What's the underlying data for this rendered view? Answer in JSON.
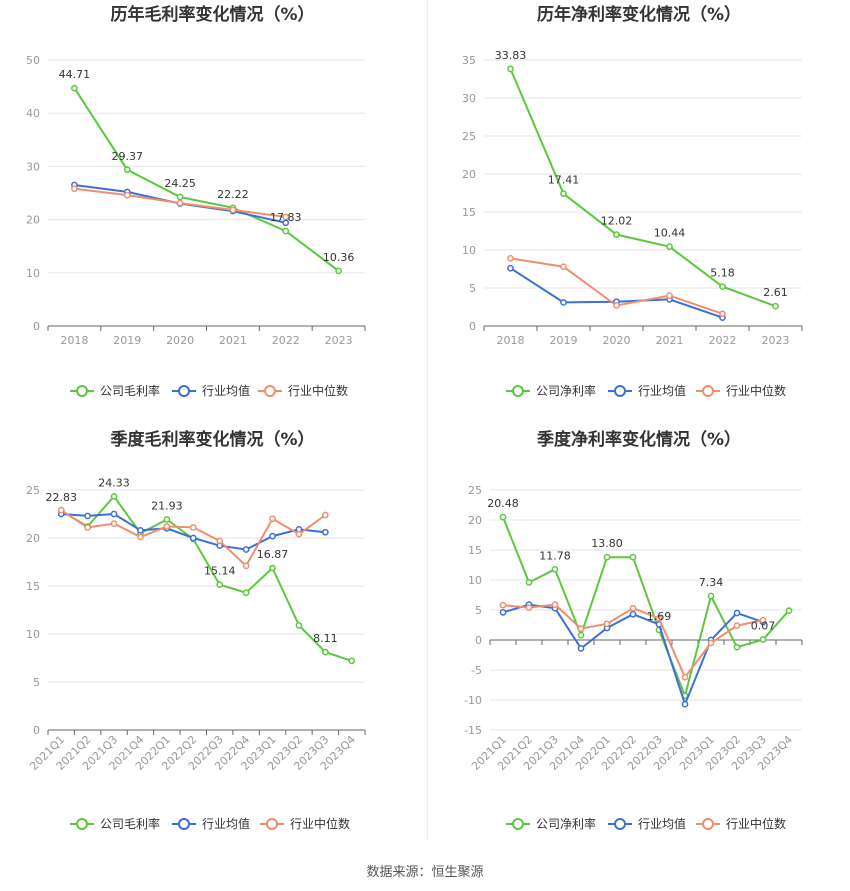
{
  "source_text": "数据来源：恒生聚源",
  "colors": {
    "company": "#5ac83c",
    "avg": "#3d6fd9",
    "median": "#f08e6c",
    "grid": "#e6e6ee",
    "axis": "#999999"
  },
  "chart_data": [
    {
      "id": "annual-gross",
      "type": "line",
      "title": "历年毛利率变化情况（%）",
      "categories": [
        "2018",
        "2019",
        "2020",
        "2021",
        "2022",
        "2023"
      ],
      "ylim": [
        0,
        50
      ],
      "yticks": [
        0,
        10,
        20,
        30,
        40,
        50
      ],
      "rotate_x": false,
      "legend_position": "bottom",
      "series": [
        {
          "name": "公司毛利率",
          "key": "company",
          "values": [
            44.71,
            29.37,
            24.25,
            22.22,
            17.83,
            10.36
          ],
          "labels": [
            "44.71",
            "29.37",
            "24.25",
            "22.22",
            "17.83",
            "10.36"
          ]
        },
        {
          "name": "行业均值",
          "key": "avg",
          "values": [
            26.5,
            25.2,
            23.0,
            21.6,
            19.4,
            null
          ]
        },
        {
          "name": "行业中位数",
          "key": "median",
          "values": [
            25.8,
            24.6,
            23.1,
            21.8,
            20.5,
            null
          ]
        }
      ]
    },
    {
      "id": "annual-net",
      "type": "line",
      "title": "历年净利率变化情况（%）",
      "categories": [
        "2018",
        "2019",
        "2020",
        "2021",
        "2022",
        "2023"
      ],
      "ylim": [
        0,
        35
      ],
      "yticks": [
        0,
        5,
        10,
        15,
        20,
        25,
        30,
        35
      ],
      "rotate_x": false,
      "legend_position": "bottom",
      "series": [
        {
          "name": "公司净利率",
          "key": "company",
          "values": [
            33.83,
            17.41,
            12.02,
            10.44,
            5.18,
            2.61
          ],
          "labels": [
            "33.83",
            "17.41",
            "12.02",
            "10.44",
            "5.18",
            "2.61"
          ]
        },
        {
          "name": "行业均值",
          "key": "avg",
          "values": [
            7.6,
            3.1,
            3.2,
            3.5,
            1.1,
            null
          ]
        },
        {
          "name": "行业中位数",
          "key": "median",
          "values": [
            8.9,
            7.8,
            2.7,
            4.0,
            1.6,
            null
          ]
        }
      ]
    },
    {
      "id": "quarterly-gross",
      "type": "line",
      "title": "季度毛利率变化情况（%）",
      "categories": [
        "2021Q1",
        "2021Q2",
        "2021Q3",
        "2021Q4",
        "2022Q1",
        "2022Q2",
        "2022Q3",
        "2022Q4",
        "2023Q1",
        "2023Q2",
        "2023Q3",
        "2023Q4"
      ],
      "ylim": [
        0,
        25
      ],
      "yticks": [
        0,
        5,
        10,
        15,
        20,
        25
      ],
      "rotate_x": true,
      "legend_position": "bottom",
      "series": [
        {
          "name": "公司毛利率",
          "key": "company",
          "values": [
            22.83,
            21.2,
            24.33,
            20.5,
            21.93,
            19.9,
            15.14,
            14.3,
            16.87,
            10.9,
            8.11,
            7.2
          ],
          "labels": [
            "22.83",
            null,
            "24.33",
            null,
            "21.93",
            null,
            "15.14",
            null,
            "16.87",
            null,
            "8.11",
            null
          ]
        },
        {
          "name": "行业均值",
          "key": "avg",
          "values": [
            22.5,
            22.3,
            22.5,
            20.8,
            21.0,
            20.0,
            19.2,
            18.8,
            20.2,
            20.9,
            20.6,
            null
          ]
        },
        {
          "name": "行业中位数",
          "key": "median",
          "values": [
            22.9,
            21.1,
            21.5,
            20.1,
            21.2,
            21.1,
            19.7,
            17.1,
            22.0,
            20.4,
            22.4,
            null
          ]
        }
      ]
    },
    {
      "id": "quarterly-net",
      "type": "line",
      "title": "季度净利率变化情况（%）",
      "categories": [
        "2021Q1",
        "2021Q2",
        "2021Q3",
        "2021Q4",
        "2022Q1",
        "2022Q2",
        "2022Q3",
        "2022Q4",
        "2023Q1",
        "2023Q2",
        "2023Q3",
        "2023Q4"
      ],
      "ylim": [
        -15,
        25
      ],
      "yticks": [
        -15,
        -10,
        -5,
        0,
        5,
        10,
        15,
        20,
        25
      ],
      "rotate_x": true,
      "legend_position": "bottom",
      "series": [
        {
          "name": "公司净利率",
          "key": "company",
          "values": [
            20.48,
            9.6,
            11.78,
            0.8,
            13.8,
            13.8,
            1.69,
            -9.3,
            7.34,
            -1.2,
            0.07,
            4.9
          ],
          "labels": [
            "20.48",
            null,
            "11.78",
            null,
            "13.80",
            null,
            "1.69",
            null,
            "7.34",
            null,
            "0.07",
            null
          ]
        },
        {
          "name": "行业均值",
          "key": "avg",
          "values": [
            4.6,
            5.9,
            5.3,
            -1.4,
            2.0,
            4.3,
            2.6,
            -10.7,
            0.0,
            4.5,
            3.0,
            null
          ]
        },
        {
          "name": "行业中位数",
          "key": "median",
          "values": [
            5.8,
            5.4,
            5.9,
            1.9,
            2.7,
            5.3,
            3.6,
            -6.2,
            -0.5,
            2.4,
            3.3,
            null
          ]
        }
      ]
    }
  ]
}
